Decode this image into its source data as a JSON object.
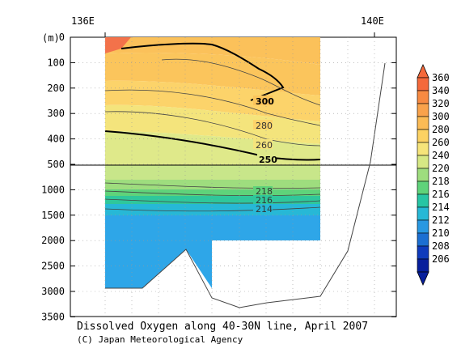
{
  "chart_data": {
    "type": "heatmap",
    "title": "Dissolved Oxygen along 40-30N line, April 2007",
    "credit": "(C) Japan Meteorological Agency",
    "x_tick_labels": [
      "136E",
      "140E"
    ],
    "y_unit_label": "(m)",
    "y_tick_labels": [
      "0",
      "100",
      "200",
      "300",
      "400",
      "500",
      "1000",
      "1500",
      "2000",
      "2500",
      "3000",
      "3500"
    ],
    "colorbar_labels": [
      "360",
      "340",
      "320",
      "300",
      "280",
      "260",
      "240",
      "220",
      "218",
      "216",
      "214",
      "212",
      "210",
      "208",
      "206"
    ],
    "colorbar_colors": [
      "#f4693b",
      "#f78a42",
      "#f9a24b",
      "#fbbb55",
      "#fcd263",
      "#f6e47a",
      "#d6e884",
      "#9edd7e",
      "#5fd37a",
      "#27c5a4",
      "#27b8d6",
      "#2998e2",
      "#1c6fd2",
      "#0f3bbc",
      "#071f9c"
    ],
    "contour_labels": [
      {
        "value": "300",
        "bold": true
      },
      {
        "value": "280",
        "bold": false
      },
      {
        "value": "260",
        "bold": false
      },
      {
        "value": "250",
        "bold": true
      },
      {
        "value": "218",
        "bold": false
      },
      {
        "value": "216",
        "bold": false
      },
      {
        "value": "214",
        "bold": false
      }
    ],
    "x_range": [
      136,
      140
    ],
    "y_axis_segments": "0-500 m linear upper panel; 500-3500 m linear lower panel",
    "grid": "dotted"
  }
}
